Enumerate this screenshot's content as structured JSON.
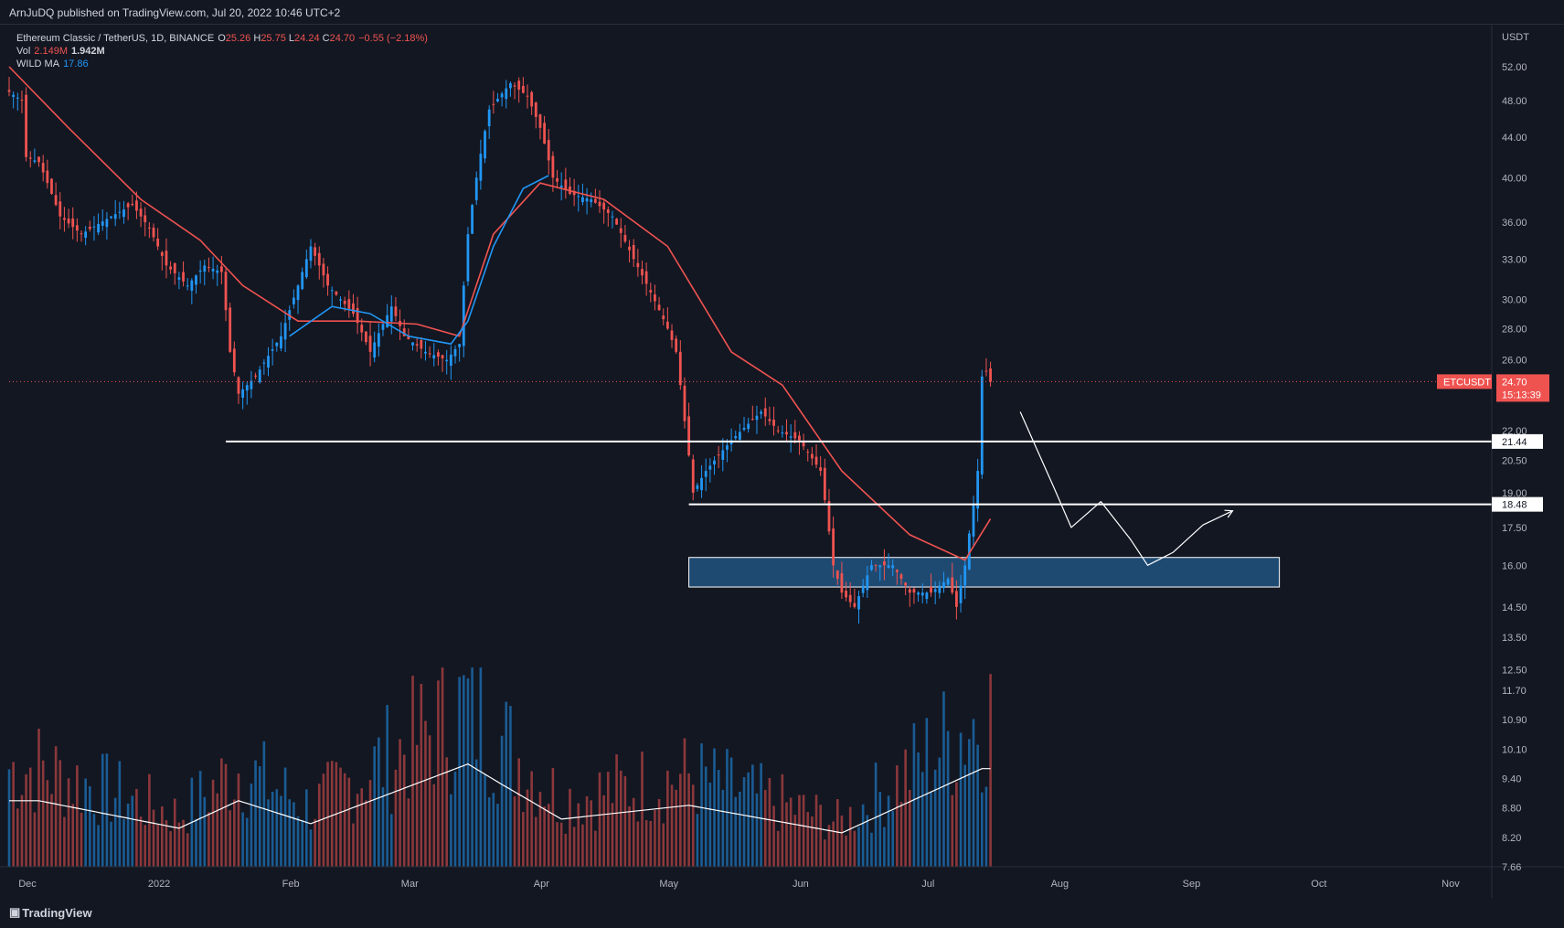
{
  "header": {
    "text": "ArnJuDQ published on TradingView.com, Jul 20, 2022 10:46 UTC+2"
  },
  "footer": {
    "logo": "TradingView"
  },
  "legend": {
    "symbol": "Ethereum Classic / TetherUS, 1D, BINANCE",
    "ohlc": [
      {
        "k": "O",
        "v": "25.26"
      },
      {
        "k": "H",
        "v": "25.75"
      },
      {
        "k": "L",
        "v": "24.24"
      },
      {
        "k": "C",
        "v": "24.70"
      }
    ],
    "change": "−0.55 (−2.18%)",
    "vol_label": "Vol",
    "vol_value": "2.149M",
    "vol_ma": "1.942M",
    "ma_label": "WILD MA",
    "ma_value": "17.86"
  },
  "price_axis": {
    "currency": "USDT",
    "ticks": [
      "52.00",
      "48.00",
      "44.00",
      "40.00",
      "36.00",
      "33.00",
      "30.00",
      "28.00",
      "26.00",
      "22.00",
      "20.50",
      "19.00",
      "17.50",
      "16.00",
      "14.50",
      "13.50",
      "12.50",
      "11.70",
      "10.90",
      "10.10",
      "9.40",
      "8.80",
      "8.20",
      "7.66"
    ],
    "current_symbol": "ETCUSDT",
    "current_price": "24.70",
    "countdown": "15:13:39",
    "levels": [
      "21.44",
      "18.48"
    ]
  },
  "time_axis": {
    "labels": [
      "Dec",
      "2022",
      "Feb",
      "Mar",
      "Apr",
      "May",
      "Jun",
      "Jul",
      "Aug",
      "Sep",
      "Oct",
      "Nov"
    ]
  },
  "colors": {
    "up": "#2196f3",
    "down": "#ef5350",
    "ma": "#f05350",
    "background": "#131722",
    "zone": "#1e4a72"
  },
  "chart_data": {
    "type": "candlestick",
    "symbol": "ETCUSDT",
    "interval": "1D",
    "y_scale": "log",
    "ylim": [
      12.3,
      55
    ],
    "x_range": [
      "2021-12-01",
      "2022-11-15"
    ],
    "price_points": [
      [
        "2021-12-01",
        49.0
      ],
      [
        "2021-12-04",
        48.0
      ],
      [
        "2021-12-05",
        42.0
      ],
      [
        "2021-12-08",
        41.5
      ],
      [
        "2021-12-13",
        36.5
      ],
      [
        "2021-12-18",
        35.0
      ],
      [
        "2021-12-25",
        36.5
      ],
      [
        "2021-12-30",
        37.5
      ],
      [
        "2022-01-03",
        35.5
      ],
      [
        "2022-01-07",
        32.5
      ],
      [
        "2022-01-12",
        31.0
      ],
      [
        "2022-01-16",
        32.5
      ],
      [
        "2022-01-20",
        32.0
      ],
      [
        "2022-01-22",
        26.5
      ],
      [
        "2022-01-24",
        24.0
      ],
      [
        "2022-01-28",
        25.0
      ],
      [
        "2022-02-03",
        27.5
      ],
      [
        "2022-02-07",
        31.0
      ],
      [
        "2022-02-10",
        34.0
      ],
      [
        "2022-02-14",
        31.0
      ],
      [
        "2022-02-20",
        29.0
      ],
      [
        "2022-02-24",
        26.5
      ],
      [
        "2022-03-01",
        29.5
      ],
      [
        "2022-03-04",
        27.5
      ],
      [
        "2022-03-09",
        26.5
      ],
      [
        "2022-03-14",
        26.0
      ],
      [
        "2022-03-17",
        27.0
      ],
      [
        "2022-03-19",
        35.0
      ],
      [
        "2022-03-21",
        40.0
      ],
      [
        "2022-03-24",
        47.0
      ],
      [
        "2022-03-29",
        50.0
      ],
      [
        "2022-04-02",
        48.5
      ],
      [
        "2022-04-05",
        45.0
      ],
      [
        "2022-04-08",
        40.0
      ],
      [
        "2022-04-12",
        38.5
      ],
      [
        "2022-04-17",
        38.0
      ],
      [
        "2022-04-22",
        36.5
      ],
      [
        "2022-04-27",
        33.0
      ],
      [
        "2022-05-01",
        30.5
      ],
      [
        "2022-05-05",
        28.0
      ],
      [
        "2022-05-07",
        26.5
      ],
      [
        "2022-05-09",
        22.5
      ],
      [
        "2022-05-11",
        19.0
      ],
      [
        "2022-05-14",
        20.0
      ],
      [
        "2022-05-20",
        21.5
      ],
      [
        "2022-05-27",
        23.0
      ],
      [
        "2022-05-31",
        22.0
      ],
      [
        "2022-06-05",
        21.5
      ],
      [
        "2022-06-10",
        20.0
      ],
      [
        "2022-06-13",
        16.0
      ],
      [
        "2022-06-15",
        15.0
      ],
      [
        "2022-06-18",
        14.5
      ],
      [
        "2022-06-22",
        16.0
      ],
      [
        "2022-06-27",
        16.0
      ],
      [
        "2022-07-01",
        15.0
      ],
      [
        "2022-07-06",
        15.0
      ],
      [
        "2022-07-10",
        15.5
      ],
      [
        "2022-07-12",
        14.5
      ],
      [
        "2022-07-14",
        16.0
      ],
      [
        "2022-07-16",
        18.5
      ],
      [
        "2022-07-17",
        20.0
      ],
      [
        "2022-07-18",
        25.0
      ],
      [
        "2022-07-19",
        25.3
      ],
      [
        "2022-07-20",
        24.7
      ]
    ],
    "ma_points": [
      [
        "2021-12-01",
        52.0
      ],
      [
        "2021-12-15",
        45.0
      ],
      [
        "2022-01-01",
        38.0
      ],
      [
        "2022-01-15",
        34.5
      ],
      [
        "2022-01-25",
        31.0
      ],
      [
        "2022-02-07",
        28.5
      ],
      [
        "2022-02-21",
        28.5
      ],
      [
        "2022-03-07",
        28.3
      ],
      [
        "2022-03-17",
        27.5
      ],
      [
        "2022-03-25",
        35.0
      ],
      [
        "2022-04-05",
        39.5
      ],
      [
        "2022-04-20",
        38.0
      ],
      [
        "2022-05-05",
        34.0
      ],
      [
        "2022-05-20",
        26.5
      ],
      [
        "2022-06-01",
        24.5
      ],
      [
        "2022-06-15",
        20.0
      ],
      [
        "2022-07-01",
        17.2
      ],
      [
        "2022-07-14",
        16.2
      ],
      [
        "2022-07-20",
        17.86
      ]
    ],
    "blue_ma_points": [
      [
        "2022-02-05",
        27.5
      ],
      [
        "2022-02-15",
        29.5
      ],
      [
        "2022-02-24",
        29.0
      ],
      [
        "2022-03-05",
        27.5
      ],
      [
        "2022-03-15",
        27.0
      ],
      [
        "2022-03-19",
        28.5
      ],
      [
        "2022-03-25",
        34.0
      ],
      [
        "2022-04-01",
        39.0
      ],
      [
        "2022-04-07",
        40.2
      ]
    ],
    "volume": {
      "approx_scale_note": "relative",
      "points": [
        [
          "2021-12-08",
          0.6
        ],
        [
          "2022-01-10",
          0.3
        ],
        [
          "2022-01-24",
          0.6
        ],
        [
          "2022-02-10",
          0.35
        ],
        [
          "2022-03-19",
          1.0
        ],
        [
          "2022-03-28",
          0.75
        ],
        [
          "2022-04-10",
          0.4
        ],
        [
          "2022-05-10",
          0.55
        ],
        [
          "2022-06-15",
          0.25
        ],
        [
          "2022-07-18",
          0.95
        ]
      ]
    },
    "drawings": {
      "horizontal_lines": [
        21.44,
        18.48
      ],
      "support_zone": [
        15.2,
        16.3
      ],
      "projection_path": [
        [
          "2022-07-27",
          23.0
        ],
        [
          "2022-08-04",
          19.2
        ],
        [
          "2022-08-08",
          17.5
        ],
        [
          "2022-08-15",
          18.6
        ],
        [
          "2022-08-22",
          17.0
        ],
        [
          "2022-08-26",
          16.0
        ],
        [
          "2022-09-01",
          16.5
        ],
        [
          "2022-09-08",
          17.6
        ],
        [
          "2022-09-15",
          18.2
        ]
      ]
    }
  }
}
